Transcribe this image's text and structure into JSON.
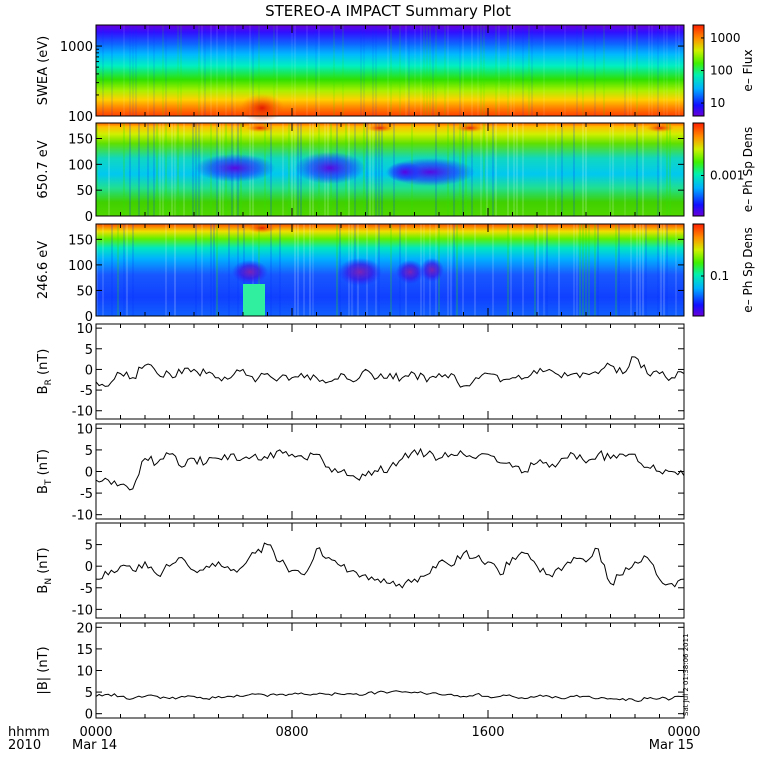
{
  "title": "STEREO-A IMPACT Summary Plot",
  "footer": {
    "hhmm_label": "hhmm",
    "year_label": "2010",
    "start_date": "Mar 14",
    "end_date": "Mar 15",
    "stamp": "Sat Jul  2 01:38:06 2011"
  },
  "chart_data": [
    {
      "type": "heatmap",
      "id": "swea",
      "ylabel": "SWEA (eV)",
      "yscale": "log",
      "ylim": [
        100,
        2000
      ],
      "yticks": [
        {
          "v": 100,
          "label": "100"
        },
        {
          "v": 1000,
          "label": "1000"
        }
      ],
      "colorbar": {
        "label": "e–  Flux",
        "scale": "log",
        "range": [
          4,
          2500
        ],
        "ticks": [
          {
            "v": 10,
            "label": "10"
          },
          {
            "v": 100,
            "label": "100"
          },
          {
            "v": 1000,
            "label": "1000"
          }
        ]
      },
      "xlim": [
        0,
        24
      ]
    },
    {
      "type": "heatmap",
      "id": "pad650",
      "ylabel": "650.7 eV",
      "ylim": [
        0,
        180
      ],
      "yticks": [
        {
          "v": 0,
          "label": "0"
        },
        {
          "v": 50,
          "label": "50"
        },
        {
          "v": 100,
          "label": "100"
        },
        {
          "v": 150,
          "label": "150"
        }
      ],
      "colorbar": {
        "label": "e–  Ph Sp Dens",
        "scale": "log",
        "ticks": [
          {
            "v": 0.001,
            "label": "0.001"
          }
        ]
      },
      "xlim": [
        0,
        24
      ]
    },
    {
      "type": "heatmap",
      "id": "pad246",
      "ylabel": "246.6 eV",
      "ylim": [
        0,
        180
      ],
      "yticks": [
        {
          "v": 0,
          "label": "0"
        },
        {
          "v": 50,
          "label": "50"
        },
        {
          "v": 100,
          "label": "100"
        },
        {
          "v": 150,
          "label": "150"
        }
      ],
      "colorbar": {
        "label": "e–  Ph Sp Dens",
        "scale": "log",
        "ticks": [
          {
            "v": 0.1,
            "label": "0.1"
          }
        ]
      },
      "xlim": [
        0,
        24
      ]
    },
    {
      "type": "line",
      "id": "br",
      "ylabel": "B",
      "ylabel_sub": "R",
      "ylabel_unit": " (nT)",
      "ylim": [
        -12,
        11
      ],
      "yticks": [
        -10,
        -5,
        0,
        5,
        10
      ],
      "xlim": [
        0,
        24
      ],
      "x": [
        0,
        0.5,
        1,
        1.5,
        2,
        2.5,
        3,
        3.5,
        4,
        4.5,
        5,
        5.5,
        6,
        6.5,
        7,
        7.5,
        8,
        8.5,
        9,
        9.5,
        10,
        10.5,
        11,
        11.5,
        12,
        12.5,
        13,
        13.5,
        14,
        14.5,
        15,
        15.5,
        16,
        16.5,
        17,
        17.5,
        18,
        18.5,
        19,
        19.5,
        20,
        20.5,
        21,
        21.5,
        22,
        22.5,
        23,
        23.5,
        24
      ],
      "y": [
        -3,
        -4,
        -1,
        -2,
        1,
        -1,
        -1,
        -1,
        0,
        -1,
        -2,
        -2,
        0,
        -3,
        -1,
        -2,
        -2,
        -2,
        -2,
        -3,
        -1,
        -3,
        0,
        -2,
        -1,
        -2,
        -1,
        -3,
        -1,
        -1,
        -4,
        -2,
        -1,
        -3,
        -2,
        -2,
        -1,
        0,
        -2,
        -1,
        -1,
        -1,
        1,
        -1,
        3,
        -1,
        -1,
        -2,
        -1
      ]
    },
    {
      "type": "line",
      "id": "bt",
      "ylabel": "B",
      "ylabel_sub": "T",
      "ylabel_unit": " (nT)",
      "ylim": [
        -11,
        11
      ],
      "yticks": [
        -10,
        -5,
        0,
        5,
        10
      ],
      "xlim": [
        0,
        24
      ],
      "x": [
        0,
        0.5,
        1,
        1.5,
        2,
        2.5,
        3,
        3.5,
        4,
        4.5,
        5,
        5.5,
        6,
        6.5,
        7,
        7.5,
        8,
        8.5,
        9,
        9.5,
        10,
        10.5,
        11,
        11.5,
        12,
        12.5,
        13,
        13.5,
        14,
        14.5,
        15,
        15.5,
        16,
        16.5,
        17,
        17.5,
        18,
        18.5,
        19,
        19.5,
        20,
        20.5,
        21,
        21.5,
        22,
        22.5,
        23,
        23.5,
        24
      ],
      "y": [
        -2,
        -2,
        -3,
        -4,
        3,
        2,
        4,
        1,
        3,
        2,
        3,
        4,
        3,
        4,
        3,
        5,
        4,
        3,
        4,
        1,
        0,
        -1,
        -1,
        0,
        1,
        3,
        5,
        4,
        3,
        4,
        4,
        3,
        4,
        2,
        1,
        0,
        2,
        1,
        3,
        4,
        2,
        4,
        3,
        4,
        4,
        1,
        0,
        0,
        -1
      ]
    },
    {
      "type": "line",
      "id": "bn",
      "ylabel": "B",
      "ylabel_sub": "N",
      "ylabel_unit": " (nT)",
      "ylim": [
        -12,
        10
      ],
      "yticks": [
        -10,
        -5,
        0,
        5
      ],
      "xlim": [
        0,
        24
      ],
      "x": [
        0,
        0.5,
        1,
        1.5,
        2,
        2.5,
        3,
        3.5,
        4,
        4.5,
        5,
        5.5,
        6,
        6.5,
        7,
        7.5,
        8,
        8.5,
        9,
        9.5,
        10,
        10.5,
        11,
        11.5,
        12,
        12.5,
        13,
        13.5,
        14,
        14.5,
        15,
        15.5,
        16,
        16.5,
        17,
        17.5,
        18,
        18.5,
        19,
        19.5,
        20,
        20.5,
        21,
        21.5,
        22,
        22.5,
        23,
        23.5,
        24
      ],
      "y": [
        -3,
        -2,
        0,
        -1,
        1,
        -2,
        0,
        2,
        -1,
        0,
        1,
        -1,
        0,
        3,
        5,
        1,
        -1,
        -2,
        4,
        2,
        0,
        -1,
        -2,
        -3,
        -4,
        -5,
        -3,
        -2,
        1,
        0,
        3,
        2,
        1,
        -2,
        2,
        3,
        0,
        -2,
        -1,
        2,
        1,
        4,
        -4,
        -2,
        1,
        2,
        -3,
        -4,
        -3
      ]
    },
    {
      "type": "line",
      "id": "bmag",
      "ylabel": "|B| (nT)",
      "ylim": [
        -1,
        21
      ],
      "yticks": [
        0,
        5,
        10,
        15,
        20
      ],
      "xlim": [
        0,
        24
      ],
      "x": [
        0,
        0.5,
        1,
        1.5,
        2,
        2.5,
        3,
        3.5,
        4,
        4.5,
        5,
        5.5,
        6,
        6.5,
        7,
        7.5,
        8,
        8.5,
        9,
        9.5,
        10,
        10.5,
        11,
        11.5,
        12,
        12.5,
        13,
        13.5,
        14,
        14.5,
        15,
        15.5,
        16,
        16.5,
        17,
        17.5,
        18,
        18.5,
        19,
        19.5,
        20,
        20.5,
        21,
        21.5,
        22,
        22.5,
        23,
        23.5,
        24
      ],
      "y": [
        4,
        4.5,
        4,
        3.5,
        4,
        4,
        3.5,
        4,
        4,
        3.5,
        4,
        4,
        4,
        4.5,
        4,
        4.5,
        4.5,
        4.5,
        4.5,
        4.5,
        4.5,
        4.5,
        4.5,
        5,
        5,
        5,
        5,
        4.5,
        4.5,
        4.5,
        4,
        4.5,
        4,
        4,
        4,
        3.5,
        4,
        4,
        3.5,
        4,
        4,
        3.5,
        3.5,
        3.5,
        3,
        3.5,
        3.5,
        3.5,
        4
      ]
    }
  ],
  "xaxis": {
    "ticks": [
      {
        "v": 0,
        "label": "0000"
      },
      {
        "v": 8,
        "label": "0800"
      },
      {
        "v": 16,
        "label": "1600"
      },
      {
        "v": 24,
        "label": "0000"
      }
    ]
  }
}
